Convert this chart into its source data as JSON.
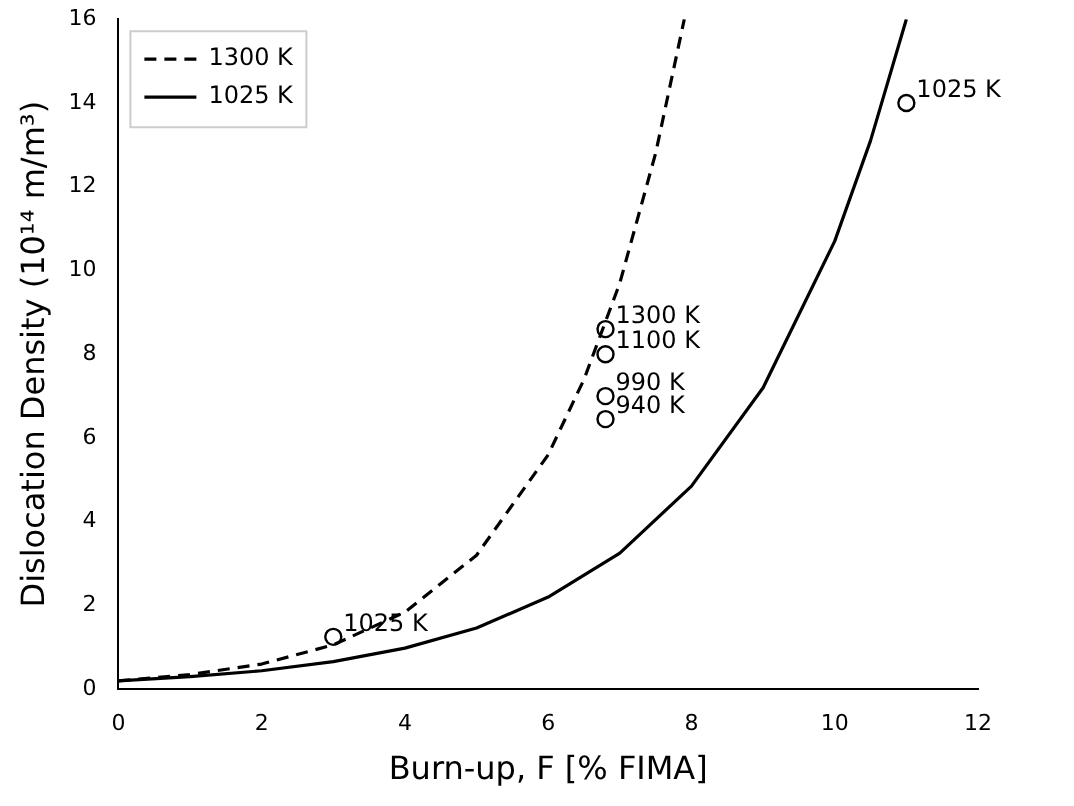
{
  "chart_data": {
    "type": "line",
    "xlabel": "Burn-up, F [% FIMA]",
    "ylabel": "Dislocation Density (10¹⁴ m/m³)",
    "xlim": [
      0,
      12
    ],
    "xticks": [
      0,
      2,
      4,
      6,
      8,
      10,
      12
    ],
    "ylim": [
      0,
      16
    ],
    "yticks": [
      0,
      2,
      4,
      6,
      8,
      10,
      12,
      14,
      16
    ],
    "grid": false,
    "legend": "top left",
    "series": [
      {
        "name": "1300 K",
        "color": "#000000",
        "line_style": "dashed",
        "marker": "none",
        "x": [
          0,
          1,
          2,
          3,
          4,
          5,
          6,
          6.5,
          7,
          7.5,
          7.9
        ],
        "values": [
          0.2,
          0.35,
          0.6,
          1.06,
          1.84,
          3.2,
          5.6,
          7.4,
          9.7,
          12.8,
          16
        ]
      },
      {
        "name": "1025 K",
        "color": "#000000",
        "line_style": "solid",
        "marker": "none",
        "x": [
          0,
          1,
          2,
          3,
          4,
          5,
          6,
          7,
          8,
          9,
          10,
          10.5,
          11
        ],
        "values": [
          0.2,
          0.3,
          0.44,
          0.66,
          0.98,
          1.46,
          2.2,
          3.25,
          4.85,
          7.2,
          10.7,
          13.1,
          16
        ]
      },
      {
        "type": "scatter",
        "color": "#000000",
        "marker": "circle",
        "x": [
          3,
          6.8,
          6.8,
          6.8,
          6.8,
          11
        ],
        "values": [
          1.25,
          8.6,
          8.0,
          7.0,
          6.45,
          14
        ]
      }
    ],
    "annotations": [
      {
        "text": "1025 K",
        "x": 3,
        "y": 1.25
      },
      {
        "text": "1300 K",
        "x": 6.8,
        "y": 8.6
      },
      {
        "text": "1100 K",
        "x": 6.8,
        "y": 8.0
      },
      {
        "text": "990 K",
        "x": 6.8,
        "y": 7.0
      },
      {
        "text": "940 K",
        "x": 6.8,
        "y": 6.45
      },
      {
        "text": "1025 K",
        "x": 11,
        "y": 14
      }
    ]
  }
}
